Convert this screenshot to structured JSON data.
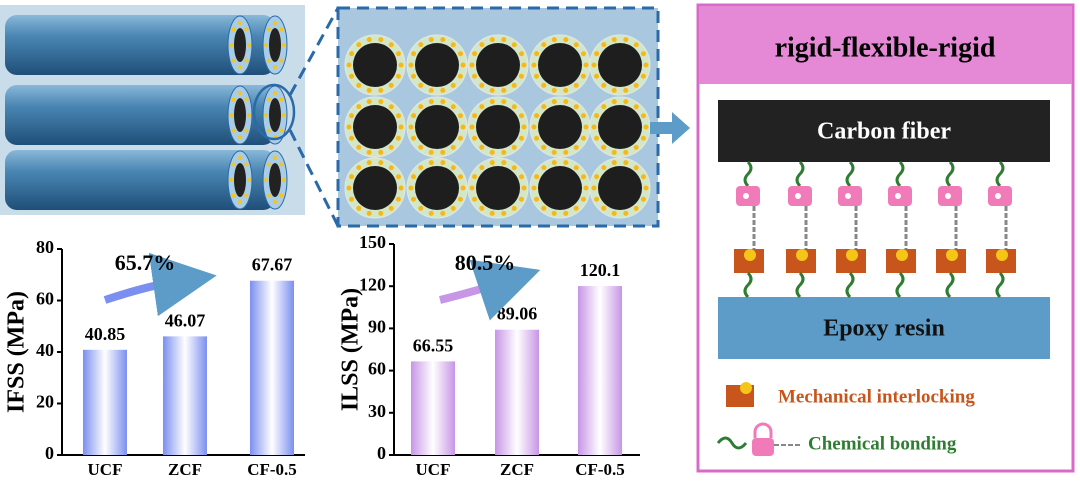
{
  "chart_data": [
    {
      "type": "bar",
      "ylabel": "IFSS (MPa)",
      "categories": [
        "UCF",
        "ZCF",
        "CF-0.5"
      ],
      "values": [
        40.85,
        46.07,
        67.67
      ],
      "color": "#7b8ff0",
      "ylim": [
        0,
        80
      ],
      "yticks": [
        0,
        20,
        40,
        60,
        80
      ],
      "annotation": "65.7%"
    },
    {
      "type": "bar",
      "ylabel": "ILSS (MPa)",
      "categories": [
        "UCF",
        "ZCF",
        "CF-0.5"
      ],
      "values": [
        66.55,
        89.06,
        120.1
      ],
      "color": "#c796e6",
      "ylim": [
        0,
        150
      ],
      "yticks": [
        0,
        30,
        60,
        90,
        120,
        150
      ],
      "annotation": "80.5%"
    }
  ],
  "diagram": {
    "title": "rigid-flexible-rigid",
    "top_layer": "Carbon fiber",
    "bottom_layer": "Epoxy resin",
    "legend": [
      "Mechanical interlocking",
      "Chemical bonding"
    ]
  }
}
